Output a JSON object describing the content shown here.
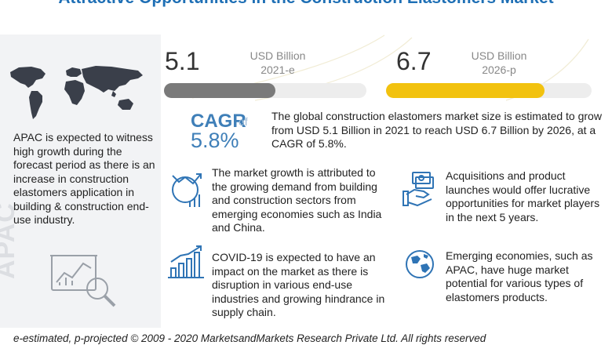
{
  "title": "Attractive Opportunities in the Construction Elastomers Market",
  "left_panel": {
    "description": "APAC is expected to witness high growth during the forecast period as there is an increase  in construction elastomers application in building  & construction end-use industry.",
    "vertical_label": "APAC",
    "icons": [
      "world-map-icon",
      "magnifier-chart-icon"
    ]
  },
  "market": {
    "start": {
      "value": "5.1",
      "unit": "USD Billion",
      "year": "2021-e",
      "bar_fill_fraction": 0.55
    },
    "end": {
      "value": "6.7",
      "unit": "USD Billion",
      "year": "2026-p",
      "bar_fill_fraction": 0.77
    },
    "colors": {
      "start_bar": "#7a7a7a",
      "end_bar": "#f2c20f",
      "accent": "#3f7fb8"
    }
  },
  "cagr": {
    "label": "CAGR",
    "of": "of",
    "value": "5.8%"
  },
  "summary": "The global construction elastomers market size is estimated to grow from USD 5.1 Billion  in 2021 to reach USD 6.7 Billion  by 2026, at a CAGR of 5.8%.",
  "bullets": [
    {
      "icon": "growth-chart-icon",
      "text": "The market growth is attributed to the growing demand from building and construction sectors from emerging economies such as India and China."
    },
    {
      "icon": "covid-bar-chart-icon",
      "text": "COVID-19 is expected to have an impact on the market as there is disruption in various end-use industries and growing hindrance in supply chain."
    },
    {
      "icon": "handshake-money-icon",
      "text": "Acquisitions and product launches would offer lucrative opportunities for market players in the next 5 years."
    },
    {
      "icon": "globe-icon",
      "text": "Emerging economies, such as APAC, have huge market potential for various types of elastomers products."
    }
  ],
  "footer": "e-estimated, p-projected © 2009 - 2020 MarketsandMarkets Research Private Ltd. All rights reserved"
}
